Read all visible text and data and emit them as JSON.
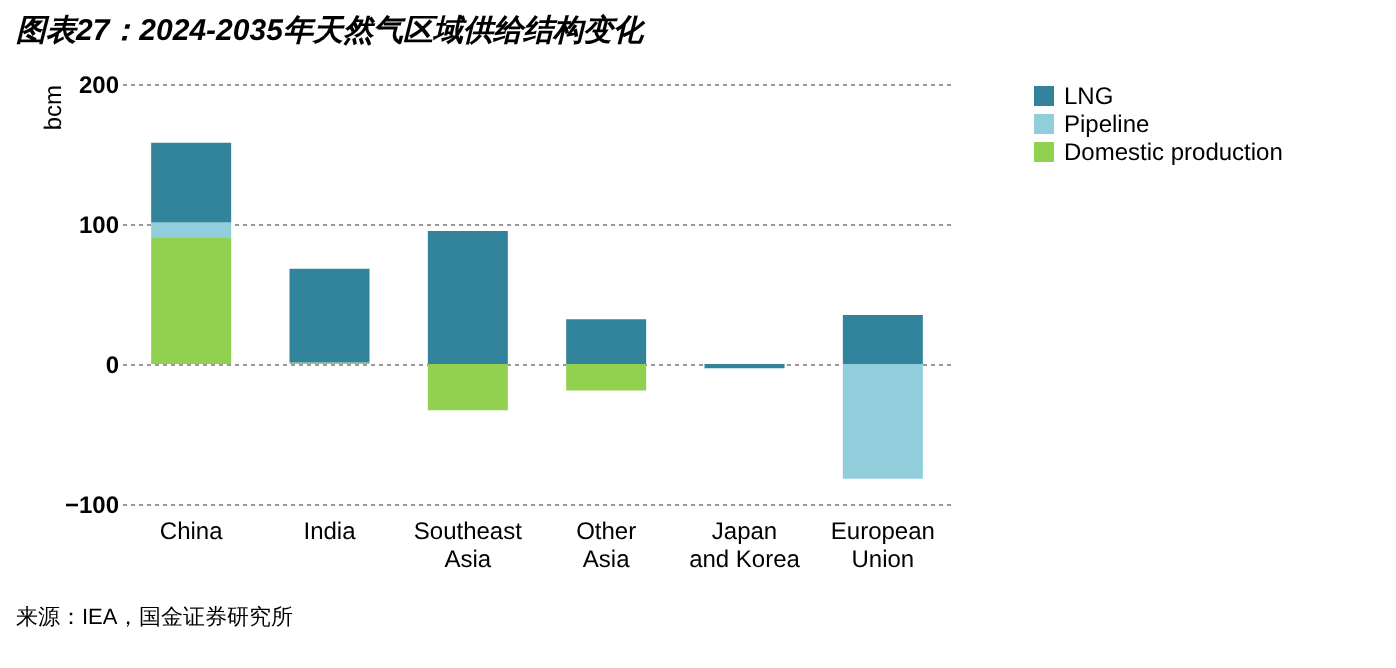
{
  "chart_data": {
    "type": "bar",
    "title": "图表27：2024-2035年天然气区域供给结构变化",
    "ylabel": "bcm",
    "stacked": true,
    "categories": [
      "China",
      "India",
      "Southeast Asia",
      "Other Asia",
      "Japan and Korea",
      "European Union"
    ],
    "series": [
      {
        "name": "Domestic production",
        "color": "#92d050",
        "values": [
          90,
          1,
          -33,
          -19,
          null,
          null
        ]
      },
      {
        "name": "Pipeline",
        "color": "#92cddc",
        "values": [
          11,
          null,
          null,
          null,
          null,
          -82
        ]
      },
      {
        "name": "LNG",
        "color": "#31849b",
        "values": [
          57,
          67,
          95,
          32,
          -3,
          35
        ]
      }
    ],
    "ylim": [
      -100,
      200
    ],
    "yticks": [
      -100,
      0,
      100,
      200
    ],
    "grid": "y",
    "legend": "top right",
    "annotations": [
      "来源：IEA，国金证券研究所"
    ]
  }
}
